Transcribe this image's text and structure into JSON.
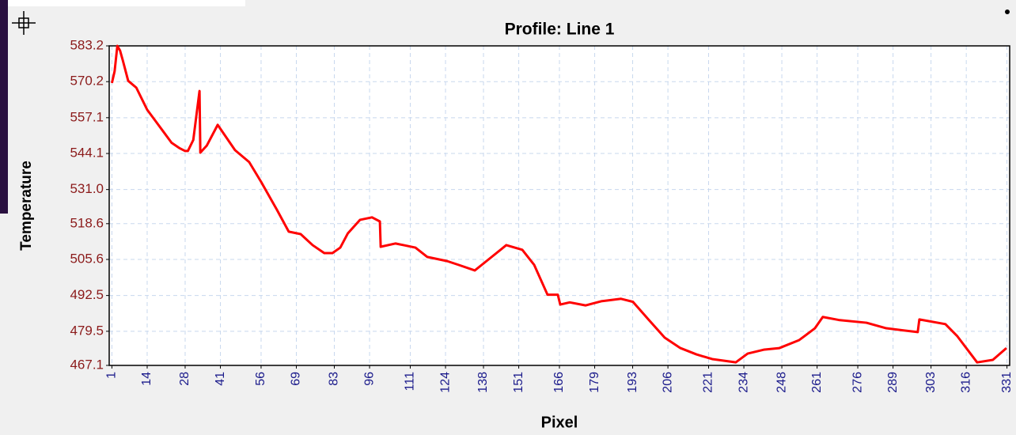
{
  "chart_data": {
    "type": "line",
    "title": "Profile: Line 1",
    "xlabel": "Pixel",
    "ylabel": "Temperature",
    "x": [
      1,
      2,
      3,
      4,
      5,
      7,
      10,
      14,
      17,
      20,
      23,
      26,
      28,
      29,
      31,
      33.3,
      33.6,
      36,
      40,
      46.4,
      51.6,
      56,
      61.8,
      66.2,
      70.6,
      75,
      79.3,
      82.3,
      85.2,
      88,
      92.5,
      96.9,
      99.8,
      100.1,
      105.6,
      112.9,
      117.3,
      124.6,
      128.9,
      134.8,
      139.1,
      146.4,
      152.3,
      156.7,
      161.6,
      165.4,
      166.3,
      169.8,
      175.6,
      181.4,
      188.7,
      193.1,
      199,
      204.8,
      210.6,
      216.5,
      222.3,
      231,
      235.4,
      241.3,
      247.1,
      254.4,
      260.2,
      263.1,
      269,
      279.2,
      286.5,
      298.1,
      298.7,
      308.3,
      312.7,
      320,
      325.8,
      330.8
    ],
    "series": [
      {
        "name": "Line 1",
        "color": "#ff0000",
        "values": [
          569.7,
          574,
          583.2,
          581.5,
          578,
          570.5,
          568,
          560,
          556,
          552,
          548,
          546,
          545,
          545,
          549,
          566.8,
          544.4,
          547,
          554.5,
          545.3,
          541,
          533.8,
          523.7,
          515.7,
          514.8,
          510.8,
          507.9,
          507.9,
          509.9,
          515.1,
          520,
          520.9,
          519.4,
          510.2,
          511.4,
          509.9,
          506.5,
          505,
          503.6,
          501.6,
          505,
          510.8,
          509.1,
          503.6,
          492.8,
          492.8,
          489.2,
          490,
          488.9,
          490.4,
          491.3,
          490.2,
          483.6,
          477.2,
          473.4,
          471.1,
          469.4,
          468.2,
          471.4,
          472.8,
          473.4,
          476.3,
          480.6,
          484.7,
          483.6,
          482.6,
          480.6,
          479.2,
          483.8,
          482.1,
          477.7,
          468.2,
          469.1,
          473.4
        ]
      }
    ],
    "xlim": [
      0,
      332
    ],
    "ylim": [
      467.1,
      583.2
    ],
    "xticks": [
      1,
      14,
      28,
      41,
      56,
      69,
      83,
      96,
      111,
      124,
      138,
      151,
      166,
      179,
      193,
      206,
      221,
      234,
      248,
      261,
      276,
      289,
      303,
      316,
      331
    ],
    "yticks": [
      583.2,
      570.2,
      557.1,
      544.1,
      {
        "value": 531,
        "label": "531.0"
      },
      518.6,
      505.6,
      492.5,
      479.5,
      467.1
    ],
    "grid": true
  }
}
